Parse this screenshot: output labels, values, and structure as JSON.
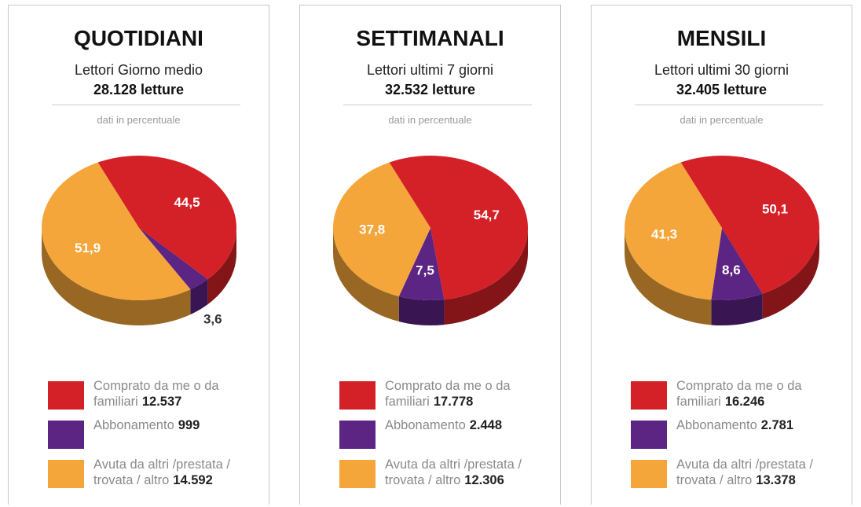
{
  "chart_data": [
    {
      "type": "pie",
      "title": "QUOTIDIANI",
      "subtitle": "Lettori Giorno medio",
      "total": "28.128 letture",
      "note": "dati in percentuale",
      "categories": [
        "Comprato da me o da familiari",
        "Abbonamento",
        "Avuta da altri /prestata / trovata / altro"
      ],
      "values": [
        44.5,
        3.6,
        51.9
      ],
      "value_labels": [
        "44,5",
        "3,6",
        "51,9"
      ],
      "counts": [
        12537,
        999,
        14592
      ],
      "count_labels": [
        "12.537",
        "999",
        "14.592"
      ],
      "colors": [
        "#d42127",
        "#5c2483",
        "#f5a63a"
      ]
    },
    {
      "type": "pie",
      "title": "SETTIMANALI",
      "subtitle": "Lettori ultimi 7 giorni",
      "total": "32.532 letture",
      "note": "dati in percentuale",
      "categories": [
        "Comprato da me o da familiari",
        "Abbonamento",
        "Avuta da altri /prestata / trovata / altro"
      ],
      "values": [
        54.7,
        7.5,
        37.8
      ],
      "value_labels": [
        "54,7",
        "7,5",
        "37,8"
      ],
      "counts": [
        17778,
        2448,
        12306
      ],
      "count_labels": [
        "17.778",
        "2.448",
        "12.306"
      ],
      "colors": [
        "#d42127",
        "#5c2483",
        "#f5a63a"
      ]
    },
    {
      "type": "pie",
      "title": "MENSILI",
      "subtitle": "Lettori ultimi 30 giorni",
      "total": "32.405 letture",
      "note": "dati in percentuale",
      "categories": [
        "Comprato da me o da familiari",
        "Abbonamento",
        "Avuta da altri /prestata / trovata / altro"
      ],
      "values": [
        50.1,
        8.6,
        41.3
      ],
      "value_labels": [
        "50,1",
        "8,6",
        "41,3"
      ],
      "counts": [
        16246,
        2781,
        13378
      ],
      "count_labels": [
        "16.246",
        "2.781",
        "13.378"
      ],
      "colors": [
        "#d42127",
        "#5c2483",
        "#f5a63a"
      ]
    }
  ]
}
